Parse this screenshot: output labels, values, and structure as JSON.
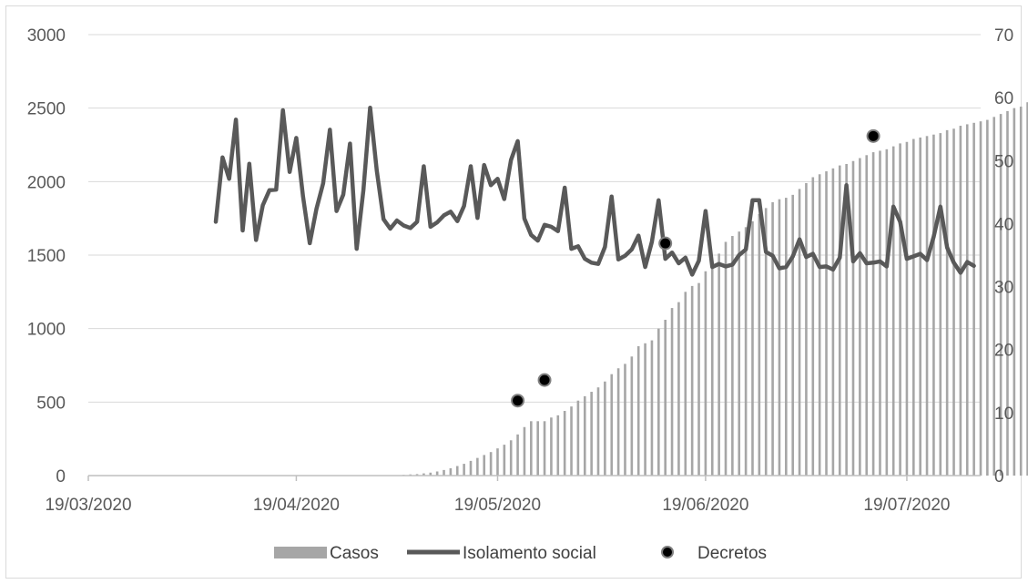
{
  "chart_data": {
    "type": "bar+line",
    "x_tick_labels": [
      "19/03/2020",
      "19/04/2020",
      "19/05/2020",
      "19/06/2020",
      "19/07/2020"
    ],
    "x_start": "2020-03-19",
    "x_end": "2020-07-30",
    "y_left": {
      "ticks": [
        "0",
        "500",
        "1000",
        "1500",
        "2000",
        "2500",
        "3000"
      ],
      "ylim": [
        0,
        3000
      ]
    },
    "y_right": {
      "ticks": [
        "0",
        "10",
        "20",
        "30",
        "40",
        "50",
        "60",
        "70"
      ],
      "ylim": [
        0,
        70
      ]
    },
    "grid": true,
    "legend_position": "bottom",
    "legend": {
      "casos": "Casos",
      "isolamento": "Isolamento social",
      "decretos": "Decretos"
    },
    "colors": {
      "bars": "#a6a6a6",
      "line": "#595959",
      "markers": "#000000",
      "grid": "#d9d9d9",
      "axis": "#bfbfbf"
    },
    "series": [
      {
        "name": "Casos",
        "type": "bar",
        "axis": "left",
        "start_date": "2020-04-07",
        "values": [
          0,
          0,
          0,
          0,
          0,
          0,
          0,
          0,
          0,
          0,
          0,
          0,
          0,
          0,
          0,
          0,
          0,
          0,
          0,
          0,
          0,
          0,
          0,
          0,
          0,
          1,
          2,
          3,
          5,
          8,
          10,
          15,
          20,
          28,
          38,
          50,
          65,
          80,
          100,
          120,
          140,
          160,
          185,
          210,
          240,
          280,
          330,
          370,
          370,
          370,
          395,
          410,
          440,
          470,
          510,
          540,
          570,
          600,
          640,
          690,
          730,
          760,
          810,
          880,
          900,
          920,
          1000,
          1060,
          1140,
          1180,
          1250,
          1290,
          1310,
          1390,
          1460,
          1510,
          1590,
          1630,
          1660,
          1690,
          1730,
          1780,
          1820,
          1860,
          1880,
          1890,
          1910,
          1950,
          1990,
          2030,
          2050,
          2070,
          2090,
          2110,
          2120,
          2140,
          2160,
          2180,
          2200,
          2210,
          2220,
          2240,
          2260,
          2270,
          2290,
          2300,
          2310,
          2320,
          2330,
          2350,
          2360,
          2380,
          2390,
          2400,
          2410,
          2420,
          2440,
          2460,
          2480,
          2500,
          2510,
          2540,
          2550,
          2560,
          2580,
          2600,
          2620,
          2630
        ]
      },
      {
        "name": "Isolamento social",
        "type": "line",
        "axis": "right",
        "start_date": "2020-04-07",
        "values": [
          40.3,
          50.5,
          47.1,
          56.5,
          38.9,
          49.5,
          37.4,
          42.9,
          45.3,
          45.4,
          58.0,
          48.2,
          53.6,
          44.3,
          36.9,
          42.3,
          46.4,
          54.9,
          42.0,
          44.6,
          52.7,
          36.0,
          45.3,
          58.4,
          48.4,
          40.7,
          39.2,
          40.5,
          39.7,
          39.3,
          40.3,
          49.1,
          39.5,
          40.2,
          41.3,
          41.9,
          40.4,
          42.8,
          49.1,
          40.9,
          49.3,
          46.1,
          47.1,
          43.9,
          50.1,
          53.1,
          40.8,
          38.2,
          37.3,
          39.8,
          39.5,
          38.8,
          45.7,
          36.0,
          36.4,
          34.4,
          33.8,
          33.6,
          36.3,
          44.3,
          34.3,
          34.9,
          35.9,
          38.1,
          33.1,
          37.1,
          43.7,
          34.4,
          35.4,
          33.7,
          34.6,
          31.9,
          34.1,
          42.0,
          33.1,
          33.6,
          33.2,
          33.5,
          35.0,
          35.9,
          43.7,
          43.7,
          35.5,
          34.9,
          32.9,
          33.1,
          34.8,
          37.5,
          34.7,
          35.2,
          33.1,
          33.2,
          32.7,
          34.6,
          46.1,
          34.0,
          35.3,
          33.7,
          33.8,
          34.0,
          33.2,
          42.7,
          40.3,
          34.4,
          34.8,
          35.2,
          34.2,
          37.9,
          42.7,
          36.2,
          33.8,
          32.2,
          33.9,
          33.3
        ]
      },
      {
        "name": "Decretos",
        "type": "scatter",
        "axis": "left",
        "points": [
          {
            "x": "2020-05-22",
            "y": 510
          },
          {
            "x": "2020-05-26",
            "y": 650
          },
          {
            "x": "2020-06-13",
            "y": 1580
          },
          {
            "x": "2020-07-14",
            "y": 2310
          }
        ]
      }
    ]
  }
}
